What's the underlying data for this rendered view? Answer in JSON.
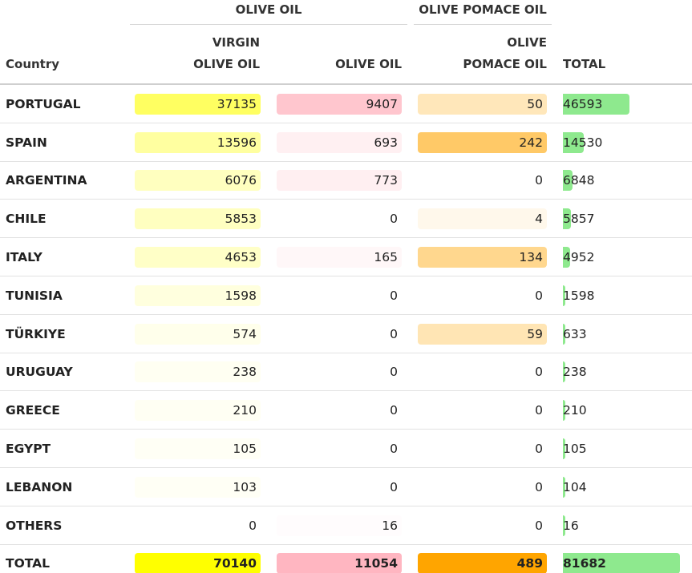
{
  "group_headers": {
    "olive_oil": "OLIVE OIL",
    "olive_pomace_oil": "OLIVE POMACE OIL"
  },
  "columns": {
    "country": "Country",
    "virgin_line1": "VIRGIN",
    "virgin_line2": "OLIVE OIL",
    "olive_oil": "OLIVE OIL",
    "pomace_line1": "OLIVE",
    "pomace_line2": "POMACE OIL",
    "total": "TOTAL"
  },
  "colors": {
    "virgin": "#ffff00",
    "olive_oil": "#ffb6c1",
    "pomace": "#ffa500",
    "total_bar": "#8ee98e"
  },
  "rows": [
    {
      "country": "PORTUGAL",
      "virgin": "37135",
      "olive": "9407",
      "pomace": "50",
      "total": "46593"
    },
    {
      "country": "SPAIN",
      "virgin": "13596",
      "olive": "693",
      "pomace": "242",
      "total": "14530"
    },
    {
      "country": "ARGENTINA",
      "virgin": "6076",
      "olive": "773",
      "pomace": "0",
      "total": "6848"
    },
    {
      "country": "CHILE",
      "virgin": "5853",
      "olive": "0",
      "pomace": "4",
      "total": "5857"
    },
    {
      "country": "ITALY",
      "virgin": "4653",
      "olive": "165",
      "pomace": "134",
      "total": "4952"
    },
    {
      "country": "TUNISIA",
      "virgin": "1598",
      "olive": "0",
      "pomace": "0",
      "total": "1598"
    },
    {
      "country": "TÜRKIYE",
      "virgin": "574",
      "olive": "0",
      "pomace": "59",
      "total": "633"
    },
    {
      "country": "URUGUAY",
      "virgin": "238",
      "olive": "0",
      "pomace": "0",
      "total": "238"
    },
    {
      "country": "GREECE",
      "virgin": "210",
      "olive": "0",
      "pomace": "0",
      "total": "210"
    },
    {
      "country": "EGYPT",
      "virgin": "105",
      "olive": "0",
      "pomace": "0",
      "total": "105"
    },
    {
      "country": "LEBANON",
      "virgin": "103",
      "olive": "0",
      "pomace": "0",
      "total": "104"
    },
    {
      "country": "OTHERS",
      "virgin": "0",
      "olive": "16",
      "pomace": "0",
      "total": "16"
    }
  ],
  "total_row": {
    "country": "TOTAL",
    "virgin": "70140",
    "olive": "11054",
    "pomace": "489",
    "total": "81682"
  }
}
